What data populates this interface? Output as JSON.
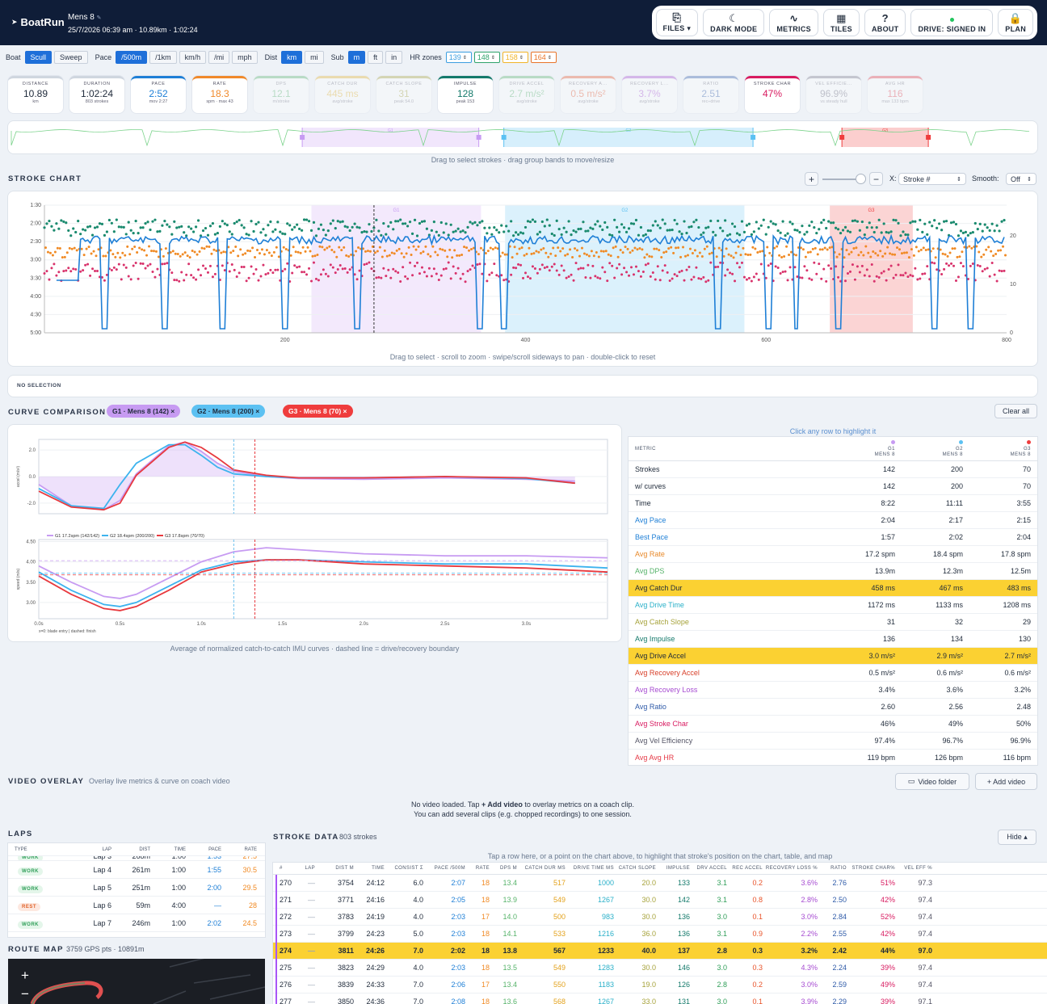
{
  "app": {
    "brand": "BoatRun",
    "session_name": "Mens 8",
    "session_meta": "25/7/2026 06:39 am · 10.89km · 1:02:24"
  },
  "toolbar": [
    {
      "icon": "files-icon",
      "glyph": "⎘",
      "label": "FILES ▾"
    },
    {
      "icon": "moon-icon",
      "glyph": "☾",
      "label": "DARK MODE"
    },
    {
      "icon": "metrics-icon",
      "glyph": "∿",
      "label": "METRICS"
    },
    {
      "icon": "tiles-icon",
      "glyph": "▦",
      "label": "TILES"
    },
    {
      "icon": "help-icon",
      "glyph": "?",
      "label": "ABOUT"
    },
    {
      "icon": "drive-icon",
      "glyph": "",
      "label": "DRIVE: SIGNED IN"
    },
    {
      "icon": "lock-icon",
      "glyph": "🔒",
      "label": "PLAN"
    }
  ],
  "settings": {
    "boat": {
      "label": "Boat",
      "options": [
        "Scull",
        "Sweep"
      ],
      "selected": "Scull"
    },
    "pace": {
      "label": "Pace",
      "options": [
        "/500m",
        "/1km",
        "km/h",
        "/mi",
        "mph"
      ],
      "selected": "/500m"
    },
    "dist": {
      "label": "Dist",
      "options": [
        "km",
        "mi"
      ],
      "selected": "km"
    },
    "sub": {
      "label": "Sub",
      "options": [
        "m",
        "ft",
        "in"
      ],
      "selected": "m"
    },
    "hr": {
      "label": "HR zones",
      "zones": [
        {
          "v": "139",
          "c": "#3b9ee0"
        },
        {
          "v": "148",
          "c": "#2fa36b"
        },
        {
          "v": "158",
          "c": "#f0b429"
        },
        {
          "v": "164",
          "c": "#e8742a"
        }
      ]
    }
  },
  "tiles": [
    {
      "label": "DISTANCE",
      "value": "10.89",
      "sub": "km",
      "color": "#cfd6df",
      "vc": "#1f2a3a",
      "dim": false
    },
    {
      "label": "DURATION",
      "value": "1:02:24",
      "sub": "803 strokes",
      "color": "#cfd6df",
      "vc": "#1f2a3a",
      "dim": false
    },
    {
      "label": "PACE",
      "value": "2:52",
      "sub": "mov 2:27",
      "color": "#1e7fd6",
      "vc": "#1e7fd6",
      "dim": false
    },
    {
      "label": "RATE",
      "value": "18.3",
      "sub": "spm · max 43",
      "color": "#f0892a",
      "vc": "#f0892a",
      "dim": false
    },
    {
      "label": "DPS",
      "value": "12.1",
      "sub": "m/stroke",
      "color": "#56b36a",
      "vc": "#56b36a",
      "dim": true
    },
    {
      "label": "CATCH DUR",
      "value": "445 ms",
      "sub": "avg/stroke",
      "color": "#e3b22c",
      "vc": "#e3b22c",
      "dim": true
    },
    {
      "label": "CATCH SLOPE",
      "value": "31",
      "sub": "peak 54.0",
      "color": "#a6a23a",
      "vc": "#a6a23a",
      "dim": true
    },
    {
      "label": "IMPULSE",
      "value": "128",
      "sub": "peak 153",
      "color": "#147a6b",
      "vc": "#147a6b",
      "dim": false
    },
    {
      "label": "DRIVE ACCEL",
      "value": "2.7 m/s²",
      "sub": "avg/stroke",
      "color": "#56b36a",
      "vc": "#56b36a",
      "dim": true
    },
    {
      "label": "RECOVERY A...",
      "value": "0.5 m/s²",
      "sub": "avg/stroke",
      "color": "#e8532a",
      "vc": "#e8532a",
      "dim": true
    },
    {
      "label": "RECOVERY L...",
      "value": "3.7%",
      "sub": "avg/stroke",
      "color": "#a64bd1",
      "vc": "#a64bd1",
      "dim": true
    },
    {
      "label": "RATIO",
      "value": "2.51",
      "sub": "rec÷drive",
      "color": "#2e5aa8",
      "vc": "#2e5aa8",
      "dim": true
    },
    {
      "label": "STROKE CHAR",
      "value": "47%",
      "sub": "",
      "color": "#d81b60",
      "vc": "#d81b60",
      "dim": false
    },
    {
      "label": "VEL EFFICIE...",
      "value": "96.9%",
      "sub": "vs steady hull",
      "color": "#778",
      "vc": "#667",
      "dim": true
    },
    {
      "label": "AVG HR",
      "value": "116",
      "sub": "max 133 bpm",
      "color": "#e53946",
      "vc": "#e53946",
      "dim": true
    }
  ],
  "mini_hint": "Drag to select strokes · drag group bands to move/resize",
  "stroke_chart": {
    "title": "STROKE CHART",
    "x_label": "X:",
    "x_value": "Stroke #",
    "smooth_label": "Smooth:",
    "smooth_value": "Off",
    "hint": "Drag to select · scroll to zoom · swipe/scroll sideways to pan · double-click to reset"
  },
  "no_selection": "NO SELECTION",
  "curve": {
    "title": "CURVE COMPARISON",
    "clear": "Clear all",
    "hint": "Average of normalized catch-to-catch IMU curves · dashed line = drive/recovery boundary",
    "table_hint": "Click any row to highlight it",
    "chips": [
      {
        "label": "G1 · Mens 8 (142) ×",
        "color": "#c79bf2"
      },
      {
        "label": "G2 · Mens 8 (200) ×",
        "color": "#5cc1f2"
      },
      {
        "label": "G3 · Mens 8 (70) ×",
        "color": "#ef3d3d"
      }
    ],
    "legend": [
      "G1 17.2spm (142/142)",
      "G2 18.4spm (200/200)",
      "G3 17.8spm (70/70)"
    ],
    "footnote": "x=0: blade entry | dashed: finish",
    "y1_label": "accel (m/s²)",
    "y2_label": "speed (m/s)"
  },
  "chart_data": [
    {
      "type": "scatter",
      "title": "",
      "x_range": [
        0,
        800
      ],
      "x_ticks": [
        200,
        400,
        600,
        800
      ],
      "y_left_ticks": [
        "1:30",
        "2:00",
        "2:30",
        "3:00",
        "3:30",
        "4:00",
        "4:30",
        "5:00"
      ],
      "y_right_ticks": [
        0,
        10,
        20
      ],
      "series": [],
      "groups": [
        {
          "name": "G1",
          "start": 222,
          "end": 363,
          "color": "#c79bf2"
        },
        {
          "name": "G2",
          "start": 383,
          "end": 582,
          "color": "#5cc1f2"
        },
        {
          "name": "G3",
          "start": 653,
          "end": 722,
          "color": "#ef3d3d"
        }
      ],
      "cursor_x": 274
    },
    {
      "type": "line",
      "title": "",
      "xlabel": "",
      "ylabel": "accel (m/s²)",
      "x": [
        0,
        0.2,
        0.4,
        0.5,
        0.6,
        0.8,
        0.9,
        1.0,
        1.1,
        1.2,
        1.4,
        1.6,
        2.0,
        2.5,
        3.0,
        3.3
      ],
      "series": [
        {
          "name": "G1 17.2spm (142/142)",
          "values": [
            -0.6,
            -2.2,
            -2.5,
            -1.8,
            0.2,
            2.3,
            2.6,
            1.9,
            1.0,
            0.4,
            0.0,
            -0.15,
            -0.2,
            -0.1,
            -0.2,
            -0.35
          ]
        },
        {
          "name": "G2 18.4spm (200/200)",
          "values": [
            -0.9,
            -2.2,
            -2.4,
            -0.6,
            1.0,
            2.4,
            2.4,
            1.6,
            0.7,
            0.2,
            0.0,
            -0.1,
            -0.1,
            0.0,
            -0.15,
            -0.5
          ]
        },
        {
          "name": "G3 17.8spm (70/70)",
          "values": [
            -1.1,
            -2.3,
            -2.5,
            -2.0,
            0.1,
            2.2,
            2.6,
            2.2,
            1.4,
            0.5,
            0.1,
            -0.1,
            -0.1,
            0.0,
            -0.1,
            -0.5
          ]
        }
      ],
      "ylim": [
        -2.8,
        2.8
      ],
      "y_ticks": [
        2.0,
        0.0,
        -2.0
      ],
      "x_ticks": [
        "0.0s",
        "0.5s",
        "1.0s",
        "1.5s",
        "2.0s",
        "2.5s",
        "3.0s"
      ]
    },
    {
      "type": "line",
      "title": "",
      "xlabel": "",
      "ylabel": "speed (m/s)",
      "x": [
        0,
        0.2,
        0.4,
        0.5,
        0.6,
        0.8,
        1.0,
        1.2,
        1.4,
        1.6,
        2.0,
        2.5,
        3.0,
        3.5
      ],
      "series": [
        {
          "name": "G1 17.2spm (142/142)",
          "values": [
            3.9,
            3.5,
            3.15,
            3.1,
            3.2,
            3.6,
            4.0,
            4.25,
            4.35,
            4.3,
            4.2,
            4.15,
            4.15,
            4.1
          ]
        },
        {
          "name": "G2 18.4spm (200/200)",
          "values": [
            3.75,
            3.3,
            2.95,
            2.9,
            3.0,
            3.4,
            3.8,
            4.0,
            4.05,
            4.05,
            4.0,
            3.95,
            3.95,
            3.85
          ]
        },
        {
          "name": "G3 17.8spm (70/70)",
          "values": [
            3.65,
            3.2,
            2.85,
            2.8,
            2.9,
            3.3,
            3.75,
            3.95,
            4.05,
            4.05,
            3.95,
            3.9,
            3.85,
            3.75
          ]
        }
      ],
      "ylim": [
        2.6,
        4.55
      ],
      "y_ticks": [
        4.5,
        4.0,
        3.5,
        3.0
      ],
      "x_ticks": [
        "0.0s",
        "0.5s",
        "1.0s",
        "1.5s",
        "2.0s",
        "2.5s",
        "3.0s"
      ]
    }
  ],
  "metrics_table": {
    "headers": [
      "METRIC",
      "G1\nMENS 8",
      "G2\nMENS 8",
      "G3\nMENS 8"
    ],
    "head_colors": [
      "#c79bf2",
      "#5cc1f2",
      "#ef3d3d"
    ],
    "rows": [
      {
        "m": "Strokes",
        "v": [
          "142",
          "200",
          "70"
        ],
        "c": "#1f2a3a",
        "hl": false
      },
      {
        "m": "w/ curves",
        "v": [
          "142",
          "200",
          "70"
        ],
        "c": "#1f2a3a",
        "hl": false
      },
      {
        "m": "Time",
        "v": [
          "8:22",
          "11:11",
          "3:55"
        ],
        "c": "#1f2a3a",
        "hl": false
      },
      {
        "m": "Avg Pace",
        "v": [
          "2:04",
          "2:17",
          "2:15"
        ],
        "c": "#1e7fd6",
        "hl": false
      },
      {
        "m": "Best Pace",
        "v": [
          "1:57",
          "2:02",
          "2:04"
        ],
        "c": "#1e7fd6",
        "hl": false
      },
      {
        "m": "Avg Rate",
        "v": [
          "17.2 spm",
          "18.4 spm",
          "17.8 spm"
        ],
        "c": "#e8892a",
        "hl": false
      },
      {
        "m": "Avg DPS",
        "v": [
          "13.9m",
          "12.3m",
          "12.5m"
        ],
        "c": "#56b36a",
        "hl": false
      },
      {
        "m": "Avg Catch Dur",
        "v": [
          "458 ms",
          "467 ms",
          "483 ms"
        ],
        "c": "#1f2a3a",
        "hl": true
      },
      {
        "m": "Avg Drive Time",
        "v": [
          "1172 ms",
          "1133 ms",
          "1208 ms"
        ],
        "c": "#2ab0c9",
        "hl": false
      },
      {
        "m": "Avg Catch Slope",
        "v": [
          "31",
          "32",
          "29"
        ],
        "c": "#a6a23a",
        "hl": false
      },
      {
        "m": "Avg Impulse",
        "v": [
          "136",
          "134",
          "130"
        ],
        "c": "#147a6b",
        "hl": false
      },
      {
        "m": "Avg Drive Accel",
        "v": [
          "3.0 m/s²",
          "2.9 m/s²",
          "2.7 m/s²"
        ],
        "c": "#1f2a3a",
        "hl": true
      },
      {
        "m": "Avg Recovery Accel",
        "v": [
          "0.5 m/s²",
          "0.6 m/s²",
          "0.6 m/s²"
        ],
        "c": "#d8402a",
        "hl": false
      },
      {
        "m": "Avg Recovery Loss",
        "v": [
          "3.4%",
          "3.6%",
          "3.2%"
        ],
        "c": "#a64bd1",
        "hl": false
      },
      {
        "m": "Avg Ratio",
        "v": [
          "2.60",
          "2.56",
          "2.48"
        ],
        "c": "#2e5aa8",
        "hl": false
      },
      {
        "m": "Avg Stroke Char",
        "v": [
          "46%",
          "49%",
          "50%"
        ],
        "c": "#d81b60",
        "hl": false
      },
      {
        "m": "Avg Vel Efficiency",
        "v": [
          "97.4%",
          "96.7%",
          "96.9%"
        ],
        "c": "#556",
        "hl": false
      },
      {
        "m": "Avg Avg HR",
        "v": [
          "119 bpm",
          "126 bpm",
          "116 bpm"
        ],
        "c": "#e53946",
        "hl": false
      }
    ]
  },
  "video": {
    "title": "VIDEO OVERLAY",
    "subtitle": "Overlay live metrics & curve on coach video",
    "folder": "Video folder",
    "add": "+ Add video",
    "msg1a": "No video loaded. Tap ",
    "msg1b": "+ Add video",
    "msg1c": " to overlay metrics on a coach clip.",
    "msg2": "You can add several clips (e.g. chopped recordings) to one session."
  },
  "laps": {
    "title": "LAPS",
    "headers": [
      "TYPE",
      "LAP",
      "DIST",
      "TIME",
      "PACE",
      "RATE"
    ],
    "rows": [
      {
        "type": "WORK",
        "lap": "Lap 3",
        "dist": "268m",
        "time": "1:00",
        "pace": "1:53",
        "rate": "27.5"
      },
      {
        "type": "WORK",
        "lap": "Lap 4",
        "dist": "261m",
        "time": "1:00",
        "pace": "1:55",
        "rate": "30.5"
      },
      {
        "type": "WORK",
        "lap": "Lap 5",
        "dist": "251m",
        "time": "1:00",
        "pace": "2:00",
        "rate": "29.5"
      },
      {
        "type": "REST",
        "lap": "Lap 6",
        "dist": "59m",
        "time": "4:00",
        "pace": "—",
        "rate": "28"
      },
      {
        "type": "WORK",
        "lap": "Lap 7",
        "dist": "246m",
        "time": "1:00",
        "pace": "2:02",
        "rate": "24.5"
      }
    ]
  },
  "route": {
    "title": "ROUTE MAP",
    "meta": "3759 GPS pts · 10891m"
  },
  "stroke_data": {
    "title": "STROKE DATA",
    "count": "803 strokes",
    "hide": "Hide ▴",
    "hint": "Tap a row here, or a point on the chart above, to highlight that stroke's position on the chart, table, and map",
    "headers": [
      "#",
      "LAP",
      "DIST M",
      "TIME",
      "CONSIST Σ",
      "PACE /500M",
      "RATE",
      "DPS M",
      "CATCH DUR MS",
      "DRIVE TIME MS",
      "CATCH SLOPE",
      "IMPULSE",
      "DRV ACCEL",
      "REC ACCEL",
      "RECOVERY LOSS %",
      "RATIO",
      "STROKE CHAR%",
      "VEL EFF %"
    ],
    "rows": [
      [
        "270",
        "—",
        "3754",
        "24:12",
        "6.0",
        "2:07",
        "18",
        "13.4",
        "517",
        "1000",
        "20.0",
        "133",
        "3.1",
        "0.2",
        "3.6%",
        "2.76",
        "51%",
        "97.3"
      ],
      [
        "271",
        "—",
        "3771",
        "24:16",
        "4.0",
        "2:05",
        "18",
        "13.9",
        "549",
        "1267",
        "30.0",
        "142",
        "3.1",
        "0.8",
        "2.8%",
        "2.50",
        "42%",
        "97.4"
      ],
      [
        "272",
        "—",
        "3783",
        "24:19",
        "4.0",
        "2:03",
        "17",
        "14.0",
        "500",
        "983",
        "30.0",
        "136",
        "3.0",
        "0.1",
        "3.0%",
        "2.84",
        "52%",
        "97.4"
      ],
      [
        "273",
        "—",
        "3799",
        "24:23",
        "5.0",
        "2:03",
        "18",
        "14.1",
        "533",
        "1216",
        "36.0",
        "136",
        "3.1",
        "0.9",
        "2.2%",
        "2.55",
        "42%",
        "97.4"
      ],
      [
        "274",
        "—",
        "3811",
        "24:26",
        "7.0",
        "2:02",
        "18",
        "13.8",
        "567",
        "1233",
        "40.0",
        "137",
        "2.8",
        "0.3",
        "3.2%",
        "2.42",
        "44%",
        "97.0"
      ],
      [
        "275",
        "—",
        "3823",
        "24:29",
        "4.0",
        "2:03",
        "18",
        "13.5",
        "549",
        "1283",
        "30.0",
        "146",
        "3.0",
        "0.3",
        "4.3%",
        "2.24",
        "39%",
        "97.4"
      ],
      [
        "276",
        "—",
        "3839",
        "24:33",
        "7.0",
        "2:06",
        "17",
        "13.4",
        "550",
        "1183",
        "19.0",
        "126",
        "2.8",
        "0.2",
        "3.0%",
        "2.59",
        "49%",
        "97.4"
      ],
      [
        "277",
        "—",
        "3850",
        "24:36",
        "7.0",
        "2:08",
        "18",
        "13.6",
        "568",
        "1267",
        "33.0",
        "131",
        "3.0",
        "0.1",
        "3.9%",
        "2.29",
        "39%",
        "97.1"
      ]
    ],
    "highlight_row": 4
  }
}
